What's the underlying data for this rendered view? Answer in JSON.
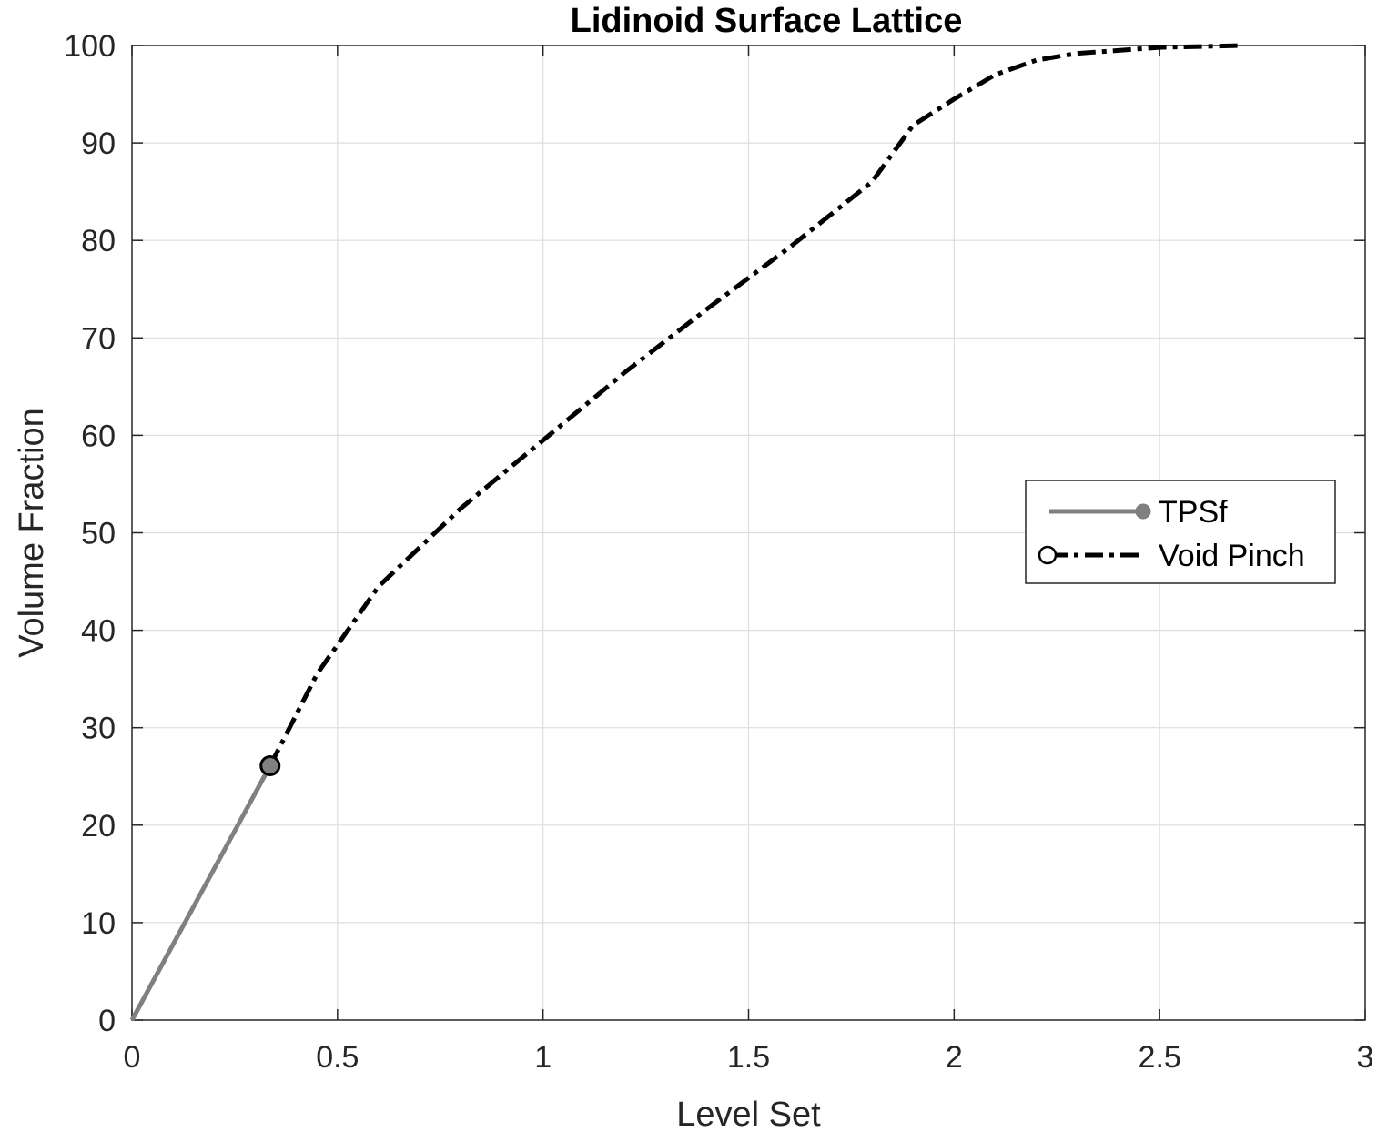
{
  "chart_data": {
    "type": "line",
    "title": "Lidinoid Surface Lattice",
    "xlabel": "Level Set",
    "ylabel": "Volume Fraction",
    "xlim": [
      0,
      3
    ],
    "ylim": [
      0,
      100
    ],
    "xticks": [
      0,
      0.5,
      1,
      1.5,
      2,
      2.5,
      3
    ],
    "xtick_labels": [
      "0",
      "0.5",
      "1",
      "1.5",
      "2",
      "2.5",
      "3"
    ],
    "yticks": [
      0,
      10,
      20,
      30,
      40,
      50,
      60,
      70,
      80,
      90,
      100
    ],
    "ytick_labels": [
      "0",
      "10",
      "20",
      "30",
      "40",
      "50",
      "60",
      "70",
      "80",
      "90",
      "100"
    ],
    "grid": true,
    "legend_position": "right",
    "series": [
      {
        "name": "TPSf",
        "color": "#808080",
        "line_style": "solid",
        "x": [
          0,
          0.336
        ],
        "y": [
          0,
          26.1
        ]
      },
      {
        "name": "Void Pinch",
        "color": "#000000",
        "line_style": "dash-dot",
        "x": [
          0.336,
          0.45,
          0.6,
          0.8,
          1.0,
          1.2,
          1.4,
          1.6,
          1.8,
          1.9,
          2.0,
          2.1,
          2.2,
          2.3,
          2.4,
          2.5,
          2.6,
          2.7
        ],
        "y": [
          26.1,
          35.5,
          44.5,
          52.5,
          59.5,
          66.5,
          73.0,
          79.3,
          86.0,
          91.8,
          94.5,
          97.0,
          98.5,
          99.2,
          99.5,
          99.8,
          99.9,
          100
        ]
      }
    ],
    "marker": {
      "x": 0.336,
      "y": 26.1,
      "fill": "#808080"
    }
  }
}
